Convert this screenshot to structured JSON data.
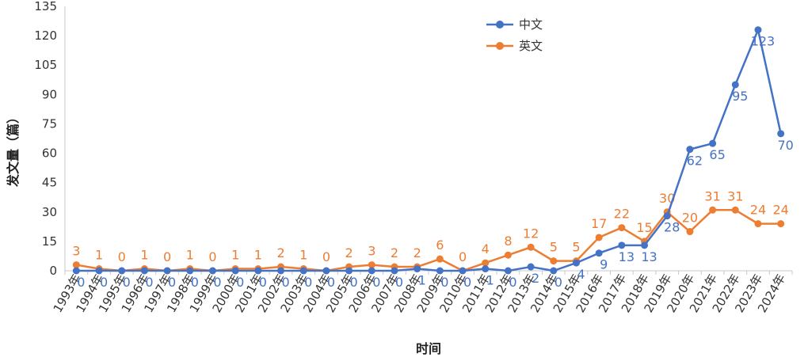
{
  "chart_data": {
    "type": "line",
    "title": "",
    "xlabel": "时间",
    "ylabel": "发文量（篇）",
    "ylim": [
      0,
      135
    ],
    "yticks": [
      0,
      15,
      30,
      45,
      60,
      75,
      90,
      105,
      120,
      135
    ],
    "grid": false,
    "legend_position": "top-center",
    "categories": [
      "1993年",
      "1994年",
      "1995年",
      "1996年",
      "1997年",
      "1998年",
      "1999年",
      "2000年",
      "2001年",
      "2002年",
      "2003年",
      "2004年",
      "2005年",
      "2006年",
      "2007年",
      "2008年",
      "2009年",
      "2010年",
      "2011年",
      "2012年",
      "2013年",
      "2014年",
      "2015年",
      "2016年",
      "2017年",
      "2018年",
      "2019年",
      "2020年",
      "2021年",
      "2022年",
      "2023年",
      "2024年"
    ],
    "series": [
      {
        "name": "中文",
        "color": "#4472c4",
        "label_position": "below",
        "values": [
          0,
          0,
          0,
          0,
          0,
          0,
          0,
          0,
          0,
          0,
          0,
          0,
          0,
          0,
          0,
          1,
          0,
          0,
          1,
          0,
          2,
          0,
          4,
          9,
          13,
          13,
          28,
          62,
          65,
          95,
          123,
          70
        ]
      },
      {
        "name": "英文",
        "color": "#ed7d31",
        "label_position": "above",
        "values": [
          3,
          1,
          0,
          1,
          0,
          1,
          0,
          1,
          1,
          2,
          1,
          0,
          2,
          3,
          2,
          2,
          6,
          0,
          4,
          8,
          12,
          5,
          5,
          17,
          22,
          15,
          30,
          20,
          31,
          31,
          24,
          24
        ]
      }
    ]
  }
}
